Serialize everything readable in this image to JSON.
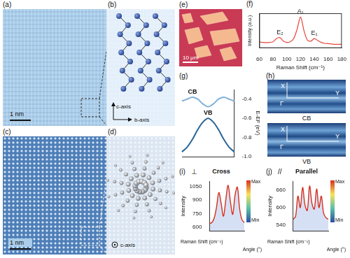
{
  "panels": {
    "a": {
      "letter": "(a)",
      "scale_bar": "1 nm"
    },
    "b": {
      "letter": "(b)",
      "axes": [
        "c-axis",
        "b-axis"
      ]
    },
    "c": {
      "letter": "(c)",
      "scale_bar": "1 nm"
    },
    "d": {
      "letter": "(d)",
      "axis": "c-axis"
    },
    "e": {
      "letter": "(e)",
      "scale_bar": "10 μm"
    },
    "h": {
      "letter": "(h)",
      "maps": [
        {
          "band": "CB",
          "points": [
            "X",
            "Γ",
            "Y"
          ]
        },
        {
          "band": "VB",
          "points": [
            "X",
            "Γ",
            "Y"
          ]
        }
      ]
    }
  },
  "chart_data": [
    {
      "panel": "(f)",
      "type": "line",
      "xlabel": "Raman Shift (cm⁻¹)",
      "ylabel": "Intensity (a.u.)",
      "x": [
        60,
        65,
        70,
        75,
        80,
        85,
        90,
        95,
        100,
        105,
        110,
        115,
        120,
        125,
        130,
        135,
        140,
        145,
        150,
        155,
        160,
        165,
        170,
        175,
        180
      ],
      "values": [
        0.2,
        0.18,
        0.17,
        0.18,
        0.2,
        0.3,
        0.33,
        0.22,
        0.18,
        0.2,
        0.3,
        0.6,
        0.98,
        0.55,
        0.25,
        0.22,
        0.3,
        0.24,
        0.18,
        0.15,
        0.14,
        0.13,
        0.12,
        0.12,
        0.12
      ],
      "color": "#e8453c",
      "xlim": [
        60,
        180
      ],
      "xticks": [
        60,
        80,
        100,
        120,
        140,
        160,
        180
      ],
      "ylim": [
        0,
        1.1
      ],
      "tick_labels": "x",
      "annotations": [
        {
          "text": "E₂",
          "x": 90
        },
        {
          "text": "A₁",
          "x": 120
        },
        {
          "text": "E₁",
          "x": 140
        }
      ]
    },
    {
      "panel": "(g)",
      "type": "line",
      "ylabel": "E-EF (eV)",
      "categories": [
        null,
        null,
        null,
        null,
        null,
        null,
        null,
        null,
        null,
        null,
        null
      ],
      "series": [
        {
          "name": "CB",
          "color": "#7fb0d8",
          "values": [
            -0.42,
            -0.4,
            -0.38,
            -0.4,
            -0.45,
            -0.48,
            -0.45,
            -0.4,
            -0.38,
            -0.4,
            -0.42
          ]
        },
        {
          "name": "VB",
          "color": "#2a6598",
          "values": [
            -0.95,
            -0.9,
            -0.82,
            -0.72,
            -0.64,
            -0.6,
            -0.64,
            -0.72,
            -0.82,
            -0.9,
            -0.95
          ]
        }
      ],
      "ylim": [
        -1.0,
        -0.3
      ],
      "yticks": [
        -0.4,
        -0.6,
        -0.8,
        {
          "value": -1.0,
          "label": "-1.0"
        }
      ],
      "tick_labels": "y"
    },
    {
      "panel": "(i)",
      "title": "Cross",
      "symbol": "⊥",
      "type": "line",
      "xlabel": "Raman Shift (cm⁻¹)",
      "ylabel": "Intensity",
      "angle_label": "Angle (°)",
      "categories": [
        null,
        null,
        null,
        null,
        null,
        null,
        null,
        null,
        null,
        null,
        null,
        null,
        null,
        null,
        null,
        null
      ],
      "values": [
        640,
        650,
        700,
        820,
        980,
        860,
        720,
        900,
        1060,
        880,
        740,
        950,
        1040,
        800,
        680,
        650
      ],
      "color": "#d7301f",
      "ylim": [
        560,
        1100
      ],
      "yticks": [
        600,
        750,
        900,
        1050
      ],
      "tick_labels": "y",
      "colorbar": {
        "labels": [
          "Max",
          "Min"
        ]
      }
    },
    {
      "panel": "(j)",
      "title": "Parallel",
      "symbol": "//",
      "type": "line",
      "xlabel": "Raman Shift (cm⁻¹)",
      "ylabel": "Intensity",
      "angle_label": "Angle (°)",
      "categories": [
        null,
        null,
        null,
        null,
        null,
        null,
        null,
        null,
        null,
        null,
        null,
        null,
        null,
        null,
        null,
        null
      ],
      "values": [
        560,
        570,
        640,
        600,
        670,
        610,
        590,
        675,
        615,
        595,
        665,
        600,
        640,
        580,
        565,
        560
      ],
      "color": "#d7301f",
      "ylim": [
        520,
        690
      ],
      "yticks": [
        540,
        600,
        660
      ],
      "tick_labels": "y",
      "colorbar": {
        "labels": [
          "Max",
          "Min"
        ]
      }
    }
  ]
}
